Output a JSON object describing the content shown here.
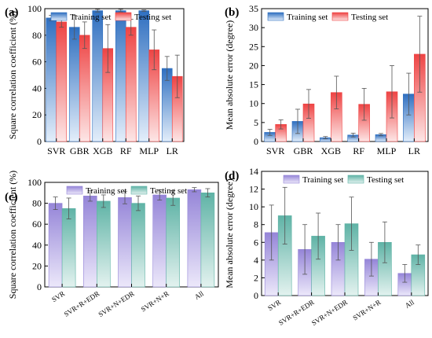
{
  "colors": {
    "blue_top": "#2f6fc0",
    "blue_bottom": "#e3eefa",
    "red_top": "#ee4444",
    "red_bottom": "#fde6e6",
    "purple_top": "#9585d8",
    "purple_bottom": "#ece8fa",
    "teal_top": "#5fb3a6",
    "teal_bottom": "#e3f2ef"
  },
  "chart_data": [
    {
      "panel_label": "(a)",
      "type": "bar",
      "categories": [
        "SVR",
        "GBR",
        "XGB",
        "RF",
        "MLP",
        "LR"
      ],
      "ylabel": "Square correlation coefficient (%)",
      "ylim": [
        0,
        100
      ],
      "yticks": [
        0,
        20,
        40,
        60,
        80,
        100
      ],
      "grid": false,
      "legend": "top",
      "series": [
        {
          "name": "Training set",
          "style": "blue",
          "values": [
            93,
            86,
            98.5,
            98.5,
            98.5,
            55
          ],
          "errors": [
            2,
            9,
            1,
            1,
            0.5,
            9
          ]
        },
        {
          "name": "Testing set",
          "style": "red",
          "values": [
            90,
            80,
            70,
            86,
            69,
            49
          ],
          "errors": [
            4,
            10,
            18,
            6,
            15,
            16
          ]
        }
      ]
    },
    {
      "panel_label": "(b)",
      "type": "bar",
      "categories": [
        "SVR",
        "GBR",
        "XGB",
        "RF",
        "MLP",
        "LR"
      ],
      "ylabel": "Mean absolute error (degree)",
      "ylim": [
        0,
        35
      ],
      "yticks": [
        0,
        5,
        10,
        15,
        20,
        25,
        30,
        35
      ],
      "grid": false,
      "legend": "top",
      "series": [
        {
          "name": "Training set",
          "style": "blue",
          "values": [
            2.4,
            5.3,
            1.0,
            1.7,
            1.8,
            12.5
          ],
          "errors": [
            0.8,
            3.2,
            0.3,
            0.5,
            0.3,
            5.5
          ]
        },
        {
          "name": "Testing set",
          "style": "red",
          "values": [
            4.5,
            9.9,
            12.9,
            9.8,
            13.1,
            23
          ],
          "errors": [
            1.2,
            3.8,
            4.3,
            4.2,
            6.9,
            10
          ]
        }
      ]
    },
    {
      "panel_label": "(c)",
      "type": "bar",
      "categories": [
        "SVR",
        "SVR+R+EDR",
        "SVR+N+EDR",
        "SVR+N+R",
        "All"
      ],
      "ylabel": "Square correlation coefficient (%)",
      "ylim": [
        0,
        100
      ],
      "yticks": [
        0,
        20,
        40,
        60,
        80,
        100
      ],
      "grid": false,
      "legend": "top",
      "series": [
        {
          "name": "Training set",
          "style": "purple",
          "values": [
            80,
            87,
            85.5,
            88,
            93
          ],
          "errors": [
            6,
            5,
            6,
            5,
            2
          ]
        },
        {
          "name": "Testing set",
          "style": "teal",
          "values": [
            75,
            82,
            80,
            85,
            90
          ],
          "errors": [
            10,
            6,
            7,
            7,
            4
          ]
        }
      ]
    },
    {
      "panel_label": "(d)",
      "type": "bar",
      "categories": [
        "SVR",
        "SVR+R+EDR",
        "SVR+N+EDR",
        "SVR+N+R",
        "All"
      ],
      "ylabel": "Mean absolute error (degree)",
      "ylim": [
        0,
        14
      ],
      "yticks": [
        0,
        2,
        4,
        6,
        8,
        10,
        12,
        14
      ],
      "grid": false,
      "legend": "top",
      "series": [
        {
          "name": "Training set",
          "style": "purple",
          "values": [
            7.1,
            5.2,
            6.0,
            4.1,
            2.5
          ],
          "errors": [
            3.1,
            2.8,
            2.0,
            1.9,
            1.0
          ]
        },
        {
          "name": "Testing set",
          "style": "teal",
          "values": [
            9.0,
            6.7,
            8.1,
            6.0,
            4.6
          ],
          "errors": [
            3.2,
            2.6,
            3.0,
            2.3,
            1.1
          ]
        }
      ]
    }
  ]
}
